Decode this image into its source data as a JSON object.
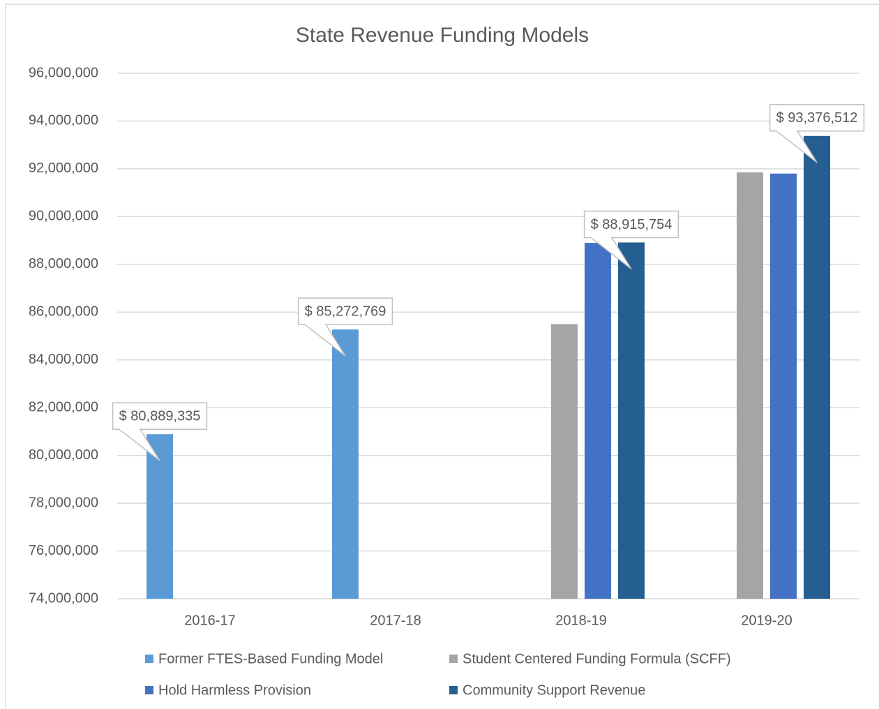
{
  "chart_data": {
    "type": "bar",
    "title": "State Revenue Funding Models",
    "categories": [
      "2016-17",
      "2017-18",
      "2018-19",
      "2019-20"
    ],
    "series": [
      {
        "name": "Former FTES-Based Funding Model",
        "color": "#5b9bd5",
        "values": [
          80889335,
          85272769,
          null,
          null
        ],
        "value_labels": [
          "$ 80,889,335",
          "$ 85,272,769",
          null,
          null
        ]
      },
      {
        "name": "Student Centered Funding Formula (SCFF)",
        "color": "#a5a5a5",
        "values": [
          null,
          null,
          85500000,
          91850000
        ]
      },
      {
        "name": "Hold Harmless Provision",
        "color": "#4472c4",
        "values": [
          null,
          null,
          88900000,
          91800000
        ]
      },
      {
        "name": "Community Support Revenue",
        "color": "#255e91",
        "values": [
          null,
          null,
          88915754,
          93376512
        ],
        "value_labels": [
          null,
          null,
          "$ 88,915,754",
          "$ 93,376,512"
        ]
      }
    ],
    "ylim": [
      74000000,
      96000000
    ],
    "yticks": [
      {
        "value": 74000000,
        "label": "74,000,000"
      },
      {
        "value": 76000000,
        "label": "76,000,000"
      },
      {
        "value": 78000000,
        "label": "78,000,000"
      },
      {
        "value": 80000000,
        "label": "80,000,000"
      },
      {
        "value": 82000000,
        "label": "82,000,000"
      },
      {
        "value": 84000000,
        "label": "84,000,000"
      },
      {
        "value": 86000000,
        "label": "86,000,000"
      },
      {
        "value": 88000000,
        "label": "88,000,000"
      },
      {
        "value": 90000000,
        "label": "90,000,000"
      },
      {
        "value": 92000000,
        "label": "92,000,000"
      },
      {
        "value": 94000000,
        "label": "94,000,000"
      },
      {
        "value": 96000000,
        "label": "96,000,000"
      }
    ],
    "grid": true,
    "legend": "bottom"
  }
}
